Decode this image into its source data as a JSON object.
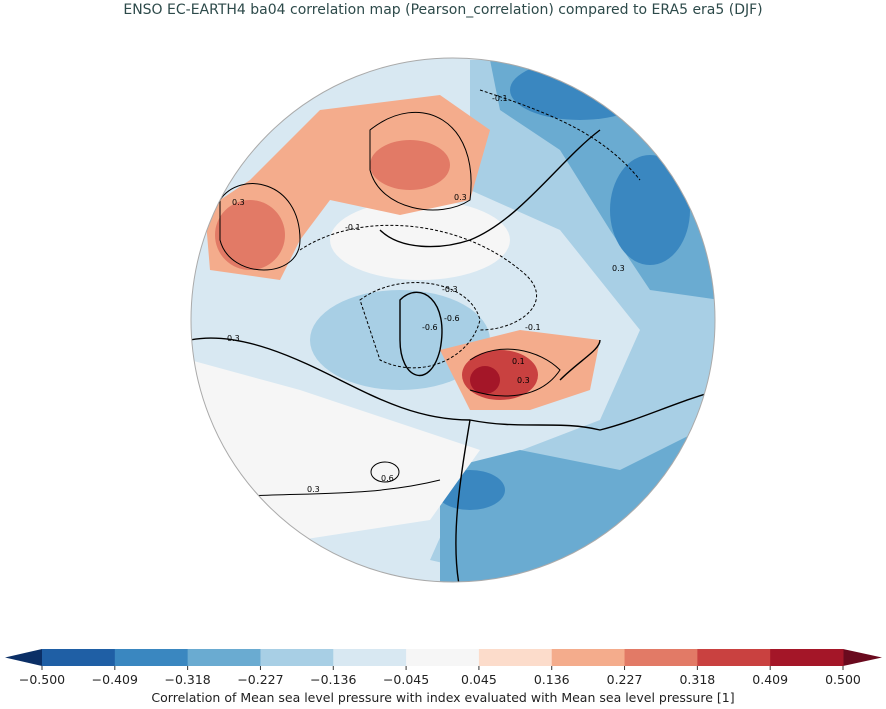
{
  "title": "ENSO EC-EARTH4 ba04 correlation map (Pearson_correlation) compared to ERA5 era5 (DJF)",
  "map": {
    "projection": "north polar stereographic",
    "contour_labels": [
      "0.3",
      "-0.1",
      "0.3",
      "-0.1",
      "-0.3",
      "-0.6",
      "-0.6",
      "0.1",
      "0.3",
      "-0.1",
      "0.3",
      "0.6",
      "0.3",
      "0.3"
    ]
  },
  "colorbar": {
    "label": "Correlation of Mean sea level pressure with index evaluated with Mean sea level pressure [1]",
    "ticks": [
      "−0.500",
      "−0.409",
      "−0.318",
      "−0.227",
      "−0.136",
      "−0.045",
      "0.045",
      "0.136",
      "0.227",
      "0.318",
      "0.409",
      "0.500"
    ],
    "colors": [
      "#1f5fa5",
      "#3a87c0",
      "#6aabd1",
      "#a8cfe5",
      "#d8e8f2",
      "#f6f6f6",
      "#fcdccb",
      "#f4ac8c",
      "#e27a66",
      "#c94140",
      "#a41628"
    ],
    "under_color": "#0b2f66",
    "over_color": "#6a0a1e"
  }
}
